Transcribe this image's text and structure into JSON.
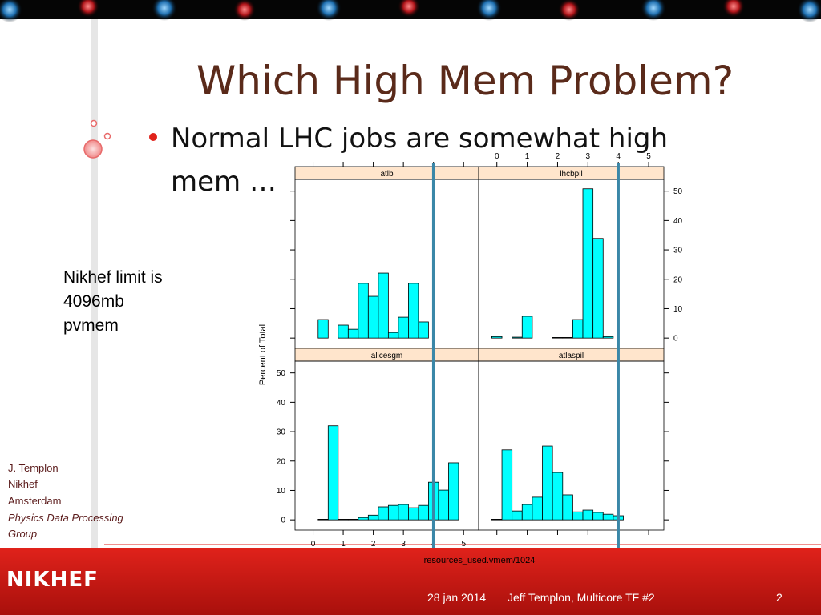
{
  "slide": {
    "title": "Which High Mem Problem?",
    "bullet": [
      "Normal LHC jobs are somewhat high",
      "mem …"
    ],
    "note": [
      "Nikhef limit is",
      "4096mb",
      "pvmem"
    ],
    "author": [
      "J. Templon",
      "Nikhef",
      "Amsterdam"
    ],
    "group": [
      "Physics Data Processing",
      "Group"
    ],
    "logo": "NIKHEF",
    "date": "28 jan 2014",
    "footer": "Jeff Templon, Multicore TF #2",
    "page": "2"
  },
  "chart_data": {
    "type": "histogram",
    "xlabel": "resources_used.vmem/1024",
    "ylabel": "Percent of Total",
    "color": "#00ffff",
    "vline": 4,
    "vline_color": "#3a87a8",
    "bins": [
      -0.167,
      0.167,
      0.5,
      0.833,
      1.167,
      1.5,
      1.833,
      2.167,
      2.5,
      2.833,
      3.167,
      3.5,
      3.833,
      4.167,
      4.5,
      4.833,
      5.167
    ],
    "xlim": [
      -0.6,
      5.5
    ],
    "ylim": [
      -3.5,
      54
    ],
    "xticks": [
      0,
      1,
      2,
      3,
      4,
      5
    ],
    "yticks": [
      0,
      10,
      20,
      30,
      40,
      50
    ],
    "panels": [
      {
        "name": "atlb",
        "values": [
          0,
          6.3,
          0,
          4.4,
          3,
          18.6,
          14.2,
          22.1,
          1.9,
          7.1,
          18.6,
          5.5,
          0,
          0,
          0,
          0
        ]
      },
      {
        "name": "lhcbpil",
        "values": [
          0.5,
          0,
          0.3,
          7.4,
          0,
          0,
          0.2,
          0.2,
          6.3,
          50.8,
          33.9,
          0.5,
          0,
          0,
          0,
          0
        ]
      },
      {
        "name": "alicesgm",
        "values": [
          0,
          0.2,
          32,
          0.2,
          0.2,
          0.8,
          1.6,
          4.4,
          4.9,
          5.2,
          4.1,
          4.9,
          12.8,
          10.1,
          19.4,
          0
        ]
      },
      {
        "name": "atlaspil",
        "values": [
          0.2,
          23.8,
          3,
          5.2,
          7.7,
          25.1,
          16.1,
          8.5,
          2.7,
          3.3,
          2.5,
          1.9,
          1.4,
          0,
          0,
          0
        ]
      }
    ]
  }
}
